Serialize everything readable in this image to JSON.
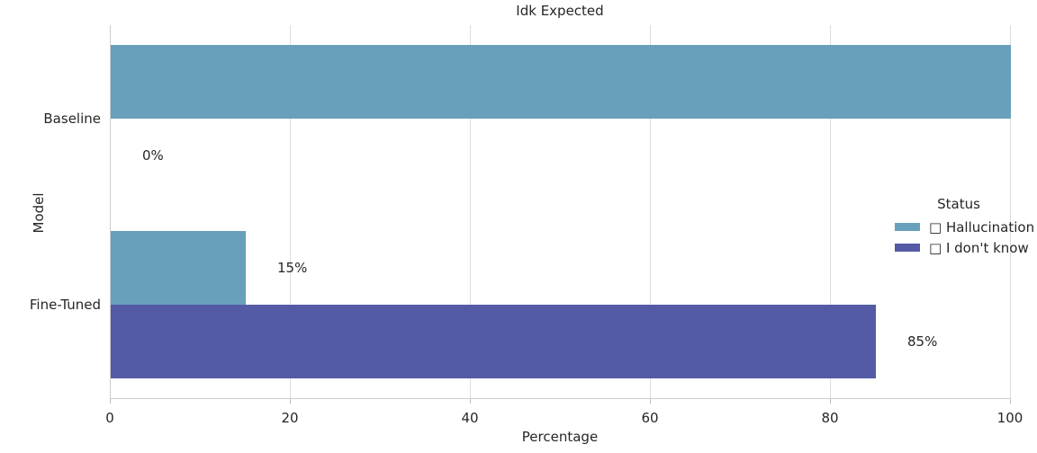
{
  "chart_data": {
    "type": "bar",
    "orientation": "horizontal",
    "title": "Idk Expected",
    "xlabel": "Percentage",
    "ylabel": "Model",
    "categories": [
      "Baseline",
      "Fine-Tuned"
    ],
    "series": [
      {
        "name": "□ Hallucination",
        "color": "#68a0bc",
        "values": [
          100,
          15
        ],
        "bar_labels": [
          "",
          "15%"
        ]
      },
      {
        "name": "□ I don't know",
        "color": "#545aa5",
        "values": [
          0,
          85
        ],
        "bar_labels": [
          "0%",
          "85%"
        ]
      }
    ],
    "xlim": [
      0,
      100
    ],
    "xticks": [
      0,
      20,
      40,
      60,
      80,
      100
    ],
    "xticklabels": [
      "0",
      "20",
      "40",
      "60",
      "80",
      "100"
    ],
    "grid": "vertical",
    "legend": {
      "title": "Status",
      "position": "right"
    }
  }
}
